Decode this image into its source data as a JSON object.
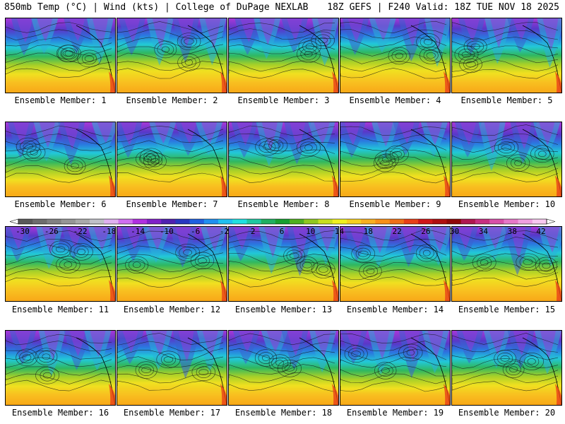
{
  "header": {
    "left": "850mb Temp (°C) | Wind (kts) | College of DuPage NEXLAB",
    "right": "18Z GEFS | F240 Valid: 18Z TUE NOV 18 2025"
  },
  "members": [
    "Ensemble Member: 1",
    "Ensemble Member: 2",
    "Ensemble Member: 3",
    "Ensemble Member: 4",
    "Ensemble Member: 5",
    "Ensemble Member: 6",
    "Ensemble Member: 7",
    "Ensemble Member: 8",
    "Ensemble Member: 9",
    "Ensemble Member: 10",
    "Ensemble Member: 11",
    "Ensemble Member: 12",
    "Ensemble Member: 13",
    "Ensemble Member: 14",
    "Ensemble Member: 15",
    "Ensemble Member: 16",
    "Ensemble Member: 17",
    "Ensemble Member: 18",
    "Ensemble Member: 19",
    "Ensemble Member: 20"
  ],
  "colorbar": {
    "labels": [
      "-30",
      "-26",
      "-22",
      "-18",
      "-14",
      "-10",
      "-6",
      "-2",
      "2",
      "6",
      "10",
      "14",
      "18",
      "22",
      "26",
      "30",
      "34",
      "38",
      "42"
    ],
    "colors": [
      "#5a5a5a",
      "#6e6e6e",
      "#828282",
      "#969696",
      "#aaaaaa",
      "#c0c0c8",
      "#e0b0f0",
      "#d070f0",
      "#b030e0",
      "#8020c8",
      "#5020b0",
      "#2838c0",
      "#2060e0",
      "#2090f0",
      "#20c0f0",
      "#20e0e0",
      "#20c8a0",
      "#20b060",
      "#18a030",
      "#50b020",
      "#90c820",
      "#c8e020",
      "#f0f020",
      "#f8d020",
      "#f8b020",
      "#f89018",
      "#f07018",
      "#e84018",
      "#d01818",
      "#b01010",
      "#900808",
      "#b01850",
      "#c83080",
      "#d850a8",
      "#e878c8",
      "#f0a0e0",
      "#f8c8f0"
    ]
  }
}
